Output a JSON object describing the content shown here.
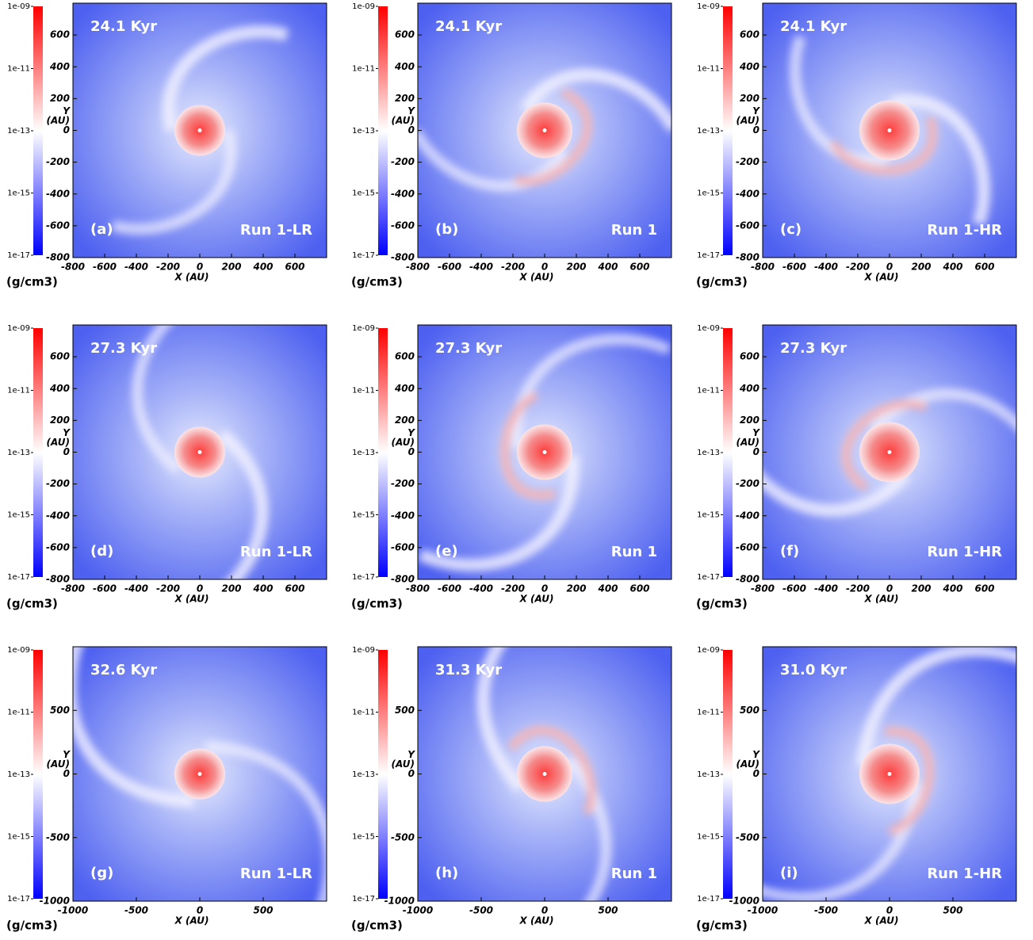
{
  "chart_data": [
    {
      "type": "heatmap",
      "annotations": {
        "time": "24.1 Kyr",
        "panel": "(a)",
        "run": "Run 1-LR"
      },
      "x_label": "X (AU)",
      "y_label": [
        "Y",
        "(AU)"
      ],
      "xlim": [
        -800,
        800
      ],
      "xticks": [
        -800,
        -600,
        -400,
        -200,
        0,
        200,
        400,
        600
      ],
      "ylim": [
        -800,
        800
      ],
      "yticks": [
        -800,
        -600,
        -400,
        -200,
        0,
        200,
        400,
        600
      ],
      "colorbar": {
        "label": "(g/cm3)",
        "log": true,
        "lim": [
          1e-17,
          1e-09
        ],
        "colors": [
          "#0000ff",
          "#ffffff",
          "#ff0000"
        ],
        "ticks": [
          {
            "value": 1e-17,
            "label": "1e-17"
          },
          {
            "value": 1e-15,
            "label": "1e-15"
          },
          {
            "value": 1e-13,
            "label": "1e-13"
          },
          {
            "value": 1e-11,
            "label": "1e-11"
          },
          {
            "value": 1e-09,
            "label": "1e-09"
          }
        ]
      }
    },
    {
      "type": "heatmap",
      "annotations": {
        "time": "24.1 Kyr",
        "panel": "(b)",
        "run": "Run 1"
      },
      "x_label": "X (AU)",
      "y_label": [
        "Y",
        "(AU)"
      ],
      "xlim": [
        -800,
        800
      ],
      "xticks": [
        -800,
        -600,
        -400,
        -200,
        0,
        200,
        400,
        600
      ],
      "ylim": [
        -800,
        800
      ],
      "yticks": [
        -800,
        -600,
        -400,
        -200,
        0,
        200,
        400,
        600
      ],
      "colorbar": {
        "label": "(g/cm3)",
        "log": true,
        "lim": [
          1e-17,
          1e-09
        ],
        "colors": [
          "#0000ff",
          "#ffffff",
          "#ff0000"
        ],
        "ticks": [
          {
            "value": 1e-17,
            "label": "1e-17"
          },
          {
            "value": 1e-15,
            "label": "1e-15"
          },
          {
            "value": 1e-13,
            "label": "1e-13"
          },
          {
            "value": 1e-11,
            "label": "1e-11"
          },
          {
            "value": 1e-09,
            "label": "1e-09"
          }
        ]
      }
    },
    {
      "type": "heatmap",
      "annotations": {
        "time": "24.1 Kyr",
        "panel": "(c)",
        "run": "Run 1-HR"
      },
      "x_label": "X (AU)",
      "y_label": [
        "Y",
        "(AU)"
      ],
      "xlim": [
        -800,
        800
      ],
      "xticks": [
        -800,
        -600,
        -400,
        -200,
        0,
        200,
        400,
        600
      ],
      "ylim": [
        -800,
        800
      ],
      "yticks": [
        -800,
        -600,
        -400,
        -200,
        0,
        200,
        400,
        600
      ],
      "colorbar": {
        "label": "(g/cm3)",
        "log": true,
        "lim": [
          1e-17,
          1e-09
        ],
        "colors": [
          "#0000ff",
          "#ffffff",
          "#ff0000"
        ],
        "ticks": [
          {
            "value": 1e-17,
            "label": "1e-17"
          },
          {
            "value": 1e-15,
            "label": "1e-15"
          },
          {
            "value": 1e-13,
            "label": "1e-13"
          },
          {
            "value": 1e-11,
            "label": "1e-11"
          },
          {
            "value": 1e-09,
            "label": "1e-09"
          }
        ]
      }
    },
    {
      "type": "heatmap",
      "annotations": {
        "time": "27.3 Kyr",
        "panel": "(d)",
        "run": "Run 1-LR"
      },
      "x_label": "X (AU)",
      "y_label": [
        "Y",
        "(AU)"
      ],
      "xlim": [
        -800,
        800
      ],
      "xticks": [
        -800,
        -600,
        -400,
        -200,
        0,
        200,
        400,
        600
      ],
      "ylim": [
        -800,
        800
      ],
      "yticks": [
        -800,
        -600,
        -400,
        -200,
        0,
        200,
        400,
        600
      ],
      "colorbar": {
        "label": "(g/cm3)",
        "log": true,
        "lim": [
          1e-17,
          1e-09
        ],
        "colors": [
          "#0000ff",
          "#ffffff",
          "#ff0000"
        ],
        "ticks": [
          {
            "value": 1e-17,
            "label": "1e-17"
          },
          {
            "value": 1e-15,
            "label": "1e-15"
          },
          {
            "value": 1e-13,
            "label": "1e-13"
          },
          {
            "value": 1e-11,
            "label": "1e-11"
          },
          {
            "value": 1e-09,
            "label": "1e-09"
          }
        ]
      }
    },
    {
      "type": "heatmap",
      "annotations": {
        "time": "27.3 Kyr",
        "panel": "(e)",
        "run": "Run 1"
      },
      "x_label": "X (AU)",
      "y_label": [
        "Y",
        "(AU)"
      ],
      "xlim": [
        -800,
        800
      ],
      "xticks": [
        -800,
        -600,
        -400,
        -200,
        0,
        200,
        400,
        600
      ],
      "ylim": [
        -800,
        800
      ],
      "yticks": [
        -800,
        -600,
        -400,
        -200,
        0,
        200,
        400,
        600
      ],
      "colorbar": {
        "label": "(g/cm3)",
        "log": true,
        "lim": [
          1e-17,
          1e-09
        ],
        "colors": [
          "#0000ff",
          "#ffffff",
          "#ff0000"
        ],
        "ticks": [
          {
            "value": 1e-17,
            "label": "1e-17"
          },
          {
            "value": 1e-15,
            "label": "1e-15"
          },
          {
            "value": 1e-13,
            "label": "1e-13"
          },
          {
            "value": 1e-11,
            "label": "1e-11"
          },
          {
            "value": 1e-09,
            "label": "1e-09"
          }
        ]
      }
    },
    {
      "type": "heatmap",
      "annotations": {
        "time": "27.3 Kyr",
        "panel": "(f)",
        "run": "Run 1-HR"
      },
      "x_label": "X (AU)",
      "y_label": [
        "Y",
        "(AU)"
      ],
      "xlim": [
        -800,
        800
      ],
      "xticks": [
        -800,
        -600,
        -400,
        -200,
        0,
        200,
        400,
        600
      ],
      "ylim": [
        -800,
        800
      ],
      "yticks": [
        -800,
        -600,
        -400,
        -200,
        0,
        200,
        400,
        600
      ],
      "colorbar": {
        "label": "(g/cm3)",
        "log": true,
        "lim": [
          1e-17,
          1e-09
        ],
        "colors": [
          "#0000ff",
          "#ffffff",
          "#ff0000"
        ],
        "ticks": [
          {
            "value": 1e-17,
            "label": "1e-17"
          },
          {
            "value": 1e-15,
            "label": "1e-15"
          },
          {
            "value": 1e-13,
            "label": "1e-13"
          },
          {
            "value": 1e-11,
            "label": "1e-11"
          },
          {
            "value": 1e-09,
            "label": "1e-09"
          }
        ]
      }
    },
    {
      "type": "heatmap",
      "annotations": {
        "time": "32.6 Kyr",
        "panel": "(g)",
        "run": "Run 1-LR"
      },
      "x_label": "X (AU)",
      "y_label": [
        "Y",
        "(AU)"
      ],
      "xlim": [
        -1000,
        1000
      ],
      "xticks": [
        -1000,
        -500,
        0,
        500
      ],
      "ylim": [
        -1000,
        1000
      ],
      "yticks": [
        -1000,
        -500,
        0,
        500
      ],
      "colorbar": {
        "label": "(g/cm3)",
        "log": true,
        "lim": [
          1e-17,
          1e-09
        ],
        "colors": [
          "#0000ff",
          "#ffffff",
          "#ff0000"
        ],
        "ticks": [
          {
            "value": 1e-17,
            "label": "1e-17"
          },
          {
            "value": 1e-15,
            "label": "1e-15"
          },
          {
            "value": 1e-13,
            "label": "1e-13"
          },
          {
            "value": 1e-11,
            "label": "1e-11"
          },
          {
            "value": 1e-09,
            "label": "1e-09"
          }
        ]
      }
    },
    {
      "type": "heatmap",
      "annotations": {
        "time": "31.3 Kyr",
        "panel": "(h)",
        "run": "Run 1"
      },
      "x_label": "X (AU)",
      "y_label": [
        "Y",
        "(AU)"
      ],
      "xlim": [
        -1000,
        1000
      ],
      "xticks": [
        -1000,
        -500,
        0,
        500
      ],
      "ylim": [
        -1000,
        1000
      ],
      "yticks": [
        -1000,
        -500,
        0,
        500
      ],
      "colorbar": {
        "label": "(g/cm3)",
        "log": true,
        "lim": [
          1e-17,
          1e-09
        ],
        "colors": [
          "#0000ff",
          "#ffffff",
          "#ff0000"
        ],
        "ticks": [
          {
            "value": 1e-17,
            "label": "1e-17"
          },
          {
            "value": 1e-15,
            "label": "1e-15"
          },
          {
            "value": 1e-13,
            "label": "1e-13"
          },
          {
            "value": 1e-11,
            "label": "1e-11"
          },
          {
            "value": 1e-09,
            "label": "1e-09"
          }
        ]
      }
    },
    {
      "type": "heatmap",
      "annotations": {
        "time": "31.0 Kyr",
        "panel": "(i)",
        "run": "Run 1-HR"
      },
      "x_label": "X (AU)",
      "y_label": [
        "Y",
        "(AU)"
      ],
      "xlim": [
        -1000,
        1000
      ],
      "xticks": [
        -1000,
        -500,
        0,
        500
      ],
      "ylim": [
        -1000,
        1000
      ],
      "yticks": [
        -1000,
        -500,
        0,
        500
      ],
      "colorbar": {
        "label": "(g/cm3)",
        "log": true,
        "lim": [
          1e-17,
          1e-09
        ],
        "colors": [
          "#0000ff",
          "#ffffff",
          "#ff0000"
        ],
        "ticks": [
          {
            "value": 1e-17,
            "label": "1e-17"
          },
          {
            "value": 1e-15,
            "label": "1e-15"
          },
          {
            "value": 1e-13,
            "label": "1e-13"
          },
          {
            "value": 1e-11,
            "label": "1e-11"
          },
          {
            "value": 1e-09,
            "label": "1e-09"
          }
        ]
      }
    }
  ]
}
